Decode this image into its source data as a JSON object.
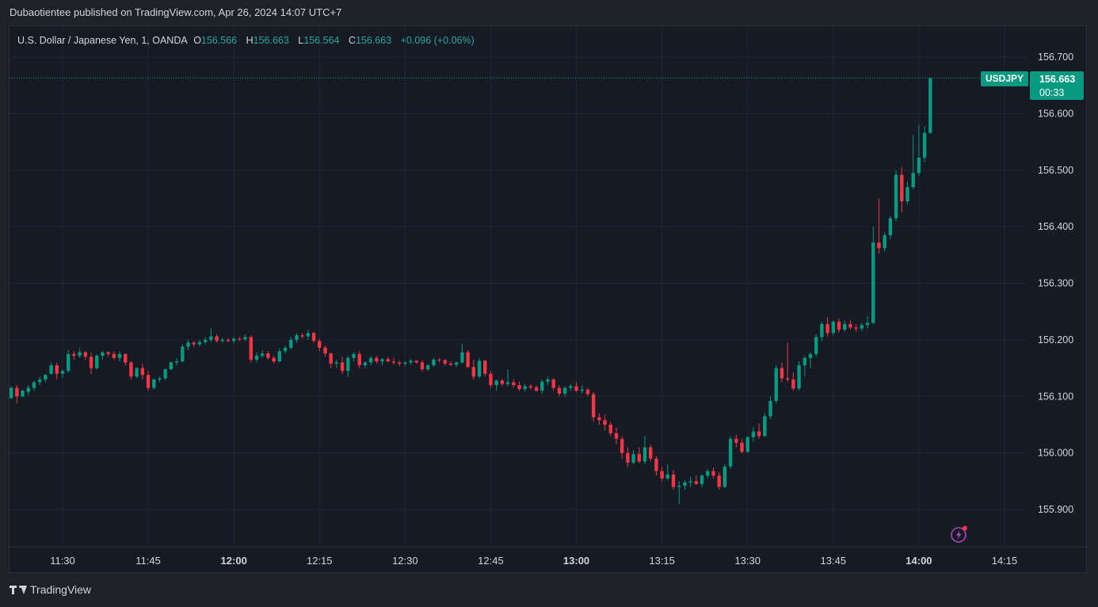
{
  "header": {
    "publisher_text": "Dubaotientee published on TradingView.com, Apr 26, 2024 14:07 UTC+7"
  },
  "legend": {
    "symbol": "U.S. Dollar / Japanese Yen, 1, OANDA",
    "o_label": "O",
    "o_value": "156.566",
    "h_label": "H",
    "h_value": "156.663",
    "l_label": "L",
    "l_value": "156.564",
    "c_label": "C",
    "c_value": "156.663",
    "change": "+0.096 (+0.06%)"
  },
  "price_tag": {
    "symbol": "USDJPY",
    "price": "156.663",
    "countdown": "00:33"
  },
  "footer": {
    "brand": "TradingView"
  },
  "icons": {
    "flash": "flash-icon",
    "logo": "tradingview-logo-icon"
  },
  "colors": {
    "up": "#089981",
    "down": "#f23645",
    "grid": "#232632",
    "text": "#d1d4dc",
    "background": "#161a25"
  },
  "chart_data": {
    "type": "candlestick",
    "timeframe": "1m",
    "y_ticks": [
      "156.700",
      "156.600",
      "156.500",
      "156.400",
      "156.300",
      "156.200",
      "156.100",
      "156.000",
      "155.900"
    ],
    "y_tick_values": [
      156.7,
      156.6,
      156.5,
      156.4,
      156.3,
      156.2,
      156.1,
      156.0,
      155.9
    ],
    "x_ticks": [
      {
        "label": "11:30",
        "bold": false
      },
      {
        "label": "11:45",
        "bold": false
      },
      {
        "label": "12:00",
        "bold": true
      },
      {
        "label": "12:15",
        "bold": false
      },
      {
        "label": "12:30",
        "bold": false
      },
      {
        "label": "12:45",
        "bold": false
      },
      {
        "label": "13:00",
        "bold": true
      },
      {
        "label": "13:15",
        "bold": false
      },
      {
        "label": "13:30",
        "bold": false
      },
      {
        "label": "13:45",
        "bold": false
      },
      {
        "label": "14:00",
        "bold": true
      },
      {
        "label": "14:15",
        "bold": false
      }
    ],
    "x_tick_minutes": [
      690,
      705,
      720,
      735,
      750,
      765,
      780,
      795,
      810,
      825,
      840,
      855
    ],
    "start_minute": 681,
    "ylim": [
      155.84,
      156.74
    ],
    "last_price": 156.663,
    "candles": [
      [
        156.097,
        156.118,
        156.095,
        156.115
      ],
      [
        156.115,
        156.12,
        156.088,
        156.1
      ],
      [
        156.1,
        156.112,
        156.098,
        156.11
      ],
      [
        156.108,
        156.12,
        156.102,
        156.115
      ],
      [
        156.115,
        156.128,
        156.11,
        156.125
      ],
      [
        156.125,
        156.135,
        156.12,
        156.13
      ],
      [
        156.13,
        156.14,
        156.125,
        156.138
      ],
      [
        156.14,
        156.16,
        156.138,
        156.155
      ],
      [
        156.155,
        156.16,
        156.13,
        156.14
      ],
      [
        156.14,
        156.148,
        156.132,
        156.145
      ],
      [
        156.145,
        156.182,
        156.142,
        156.175
      ],
      [
        156.175,
        156.18,
        156.165,
        156.172
      ],
      [
        156.172,
        156.185,
        156.168,
        156.178
      ],
      [
        156.178,
        156.18,
        156.165,
        156.17
      ],
      [
        156.17,
        156.178,
        156.14,
        156.15
      ],
      [
        156.15,
        156.175,
        156.148,
        156.172
      ],
      [
        156.172,
        156.18,
        156.165,
        156.178
      ],
      [
        156.178,
        156.18,
        156.17,
        156.175
      ],
      [
        156.175,
        156.18,
        156.165,
        156.168
      ],
      [
        156.168,
        156.18,
        156.162,
        156.175
      ],
      [
        156.175,
        156.176,
        156.155,
        156.16
      ],
      [
        156.16,
        156.162,
        156.13,
        156.135
      ],
      [
        156.135,
        156.152,
        156.132,
        156.15
      ],
      [
        156.15,
        156.158,
        156.13,
        156.138
      ],
      [
        156.138,
        156.145,
        156.11,
        156.115
      ],
      [
        156.115,
        156.132,
        156.112,
        156.13
      ],
      [
        156.13,
        156.135,
        156.125,
        156.132
      ],
      [
        156.132,
        156.15,
        156.128,
        156.148
      ],
      [
        156.148,
        156.162,
        156.146,
        156.16
      ],
      [
        156.16,
        156.168,
        156.155,
        156.162
      ],
      [
        156.162,
        156.192,
        156.16,
        156.188
      ],
      [
        156.188,
        156.2,
        156.182,
        156.195
      ],
      [
        156.195,
        156.198,
        156.188,
        156.192
      ],
      [
        156.192,
        156.2,
        156.188,
        156.196
      ],
      [
        156.196,
        156.205,
        156.192,
        156.2
      ],
      [
        156.2,
        156.22,
        156.196,
        156.206
      ],
      [
        156.206,
        156.21,
        156.195,
        156.198
      ],
      [
        156.198,
        156.204,
        156.195,
        156.2
      ],
      [
        156.2,
        156.203,
        156.196,
        156.198
      ],
      [
        156.198,
        156.205,
        156.194,
        156.202
      ],
      [
        156.202,
        156.205,
        156.198,
        156.201
      ],
      [
        156.201,
        156.21,
        156.198,
        156.205
      ],
      [
        156.205,
        156.208,
        156.16,
        156.165
      ],
      [
        156.165,
        156.178,
        156.16,
        156.172
      ],
      [
        156.172,
        156.182,
        156.168,
        156.176
      ],
      [
        156.176,
        156.18,
        156.165,
        156.168
      ],
      [
        156.168,
        156.172,
        156.158,
        156.162
      ],
      [
        156.162,
        156.185,
        156.16,
        156.18
      ],
      [
        156.18,
        156.19,
        156.176,
        156.186
      ],
      [
        156.186,
        156.205,
        156.182,
        156.2
      ],
      [
        156.2,
        156.212,
        156.195,
        156.208
      ],
      [
        156.208,
        156.212,
        156.202,
        156.206
      ],
      [
        156.206,
        156.218,
        156.2,
        156.212
      ],
      [
        156.212,
        156.214,
        156.195,
        156.198
      ],
      [
        156.198,
        156.202,
        156.18,
        156.186
      ],
      [
        156.186,
        156.19,
        156.17,
        156.176
      ],
      [
        156.176,
        156.178,
        156.15,
        156.158
      ],
      [
        156.158,
        156.165,
        156.15,
        156.16
      ],
      [
        156.16,
        156.17,
        156.14,
        156.145
      ],
      [
        156.145,
        156.172,
        156.135,
        156.168
      ],
      [
        156.168,
        156.178,
        156.162,
        156.175
      ],
      [
        156.175,
        156.18,
        156.15,
        156.155
      ],
      [
        156.155,
        156.162,
        156.15,
        156.16
      ],
      [
        156.16,
        156.172,
        156.155,
        156.168
      ],
      [
        156.168,
        156.172,
        156.158,
        156.162
      ],
      [
        156.162,
        156.168,
        156.155,
        156.166
      ],
      [
        156.166,
        156.17,
        156.16,
        156.162
      ],
      [
        156.162,
        156.168,
        156.156,
        156.16
      ],
      [
        156.16,
        156.163,
        156.154,
        156.158
      ],
      [
        156.158,
        156.162,
        156.154,
        156.16
      ],
      [
        156.16,
        156.166,
        156.156,
        156.163
      ],
      [
        156.163,
        156.165,
        156.158,
        156.16
      ],
      [
        156.16,
        156.164,
        156.144,
        156.148
      ],
      [
        156.148,
        156.158,
        156.145,
        156.155
      ],
      [
        156.155,
        156.168,
        156.152,
        156.165
      ],
      [
        156.165,
        156.168,
        156.16,
        156.164
      ],
      [
        156.164,
        156.166,
        156.154,
        156.158
      ],
      [
        156.158,
        156.162,
        156.154,
        156.156
      ],
      [
        156.156,
        156.162,
        156.152,
        156.16
      ],
      [
        156.16,
        156.193,
        156.158,
        156.178
      ],
      [
        156.178,
        156.182,
        156.15,
        156.152
      ],
      [
        156.152,
        156.165,
        156.13,
        156.135
      ],
      [
        156.135,
        156.168,
        156.132,
        156.163
      ],
      [
        156.163,
        156.165,
        156.135,
        156.14
      ],
      [
        156.14,
        156.145,
        156.115,
        156.12
      ],
      [
        156.12,
        156.13,
        156.11,
        156.128
      ],
      [
        156.128,
        156.132,
        156.118,
        156.122
      ],
      [
        156.122,
        156.148,
        156.118,
        156.125
      ],
      [
        156.125,
        156.13,
        156.115,
        156.12
      ],
      [
        156.12,
        156.126,
        156.11,
        156.113
      ],
      [
        156.113,
        156.122,
        156.108,
        156.118
      ],
      [
        156.118,
        156.122,
        156.112,
        156.116
      ],
      [
        156.116,
        156.12,
        156.108,
        156.11
      ],
      [
        156.11,
        156.13,
        156.105,
        156.126
      ],
      [
        156.126,
        156.135,
        156.12,
        156.13
      ],
      [
        156.13,
        156.132,
        156.11,
        156.115
      ],
      [
        156.115,
        156.12,
        156.1,
        156.105
      ],
      [
        156.105,
        156.118,
        156.1,
        156.115
      ],
      [
        156.115,
        156.122,
        156.11,
        156.118
      ],
      [
        156.118,
        156.125,
        156.108,
        156.11
      ],
      [
        156.11,
        156.12,
        156.105,
        156.112
      ],
      [
        156.112,
        156.115,
        156.1,
        156.104
      ],
      [
        156.104,
        156.108,
        156.055,
        156.063
      ],
      [
        156.063,
        156.07,
        156.05,
        156.058
      ],
      [
        156.058,
        156.068,
        156.04,
        156.05
      ],
      [
        156.05,
        156.055,
        156.03,
        156.035
      ],
      [
        156.035,
        156.045,
        156.015,
        156.025
      ],
      [
        156.025,
        156.03,
        155.99,
        156.0
      ],
      [
        156.0,
        156.01,
        155.975,
        155.983
      ],
      [
        155.983,
        156.005,
        155.98,
        155.998
      ],
      [
        155.998,
        156.01,
        155.982,
        155.985
      ],
      [
        155.985,
        156.03,
        155.98,
        156.01
      ],
      [
        156.01,
        156.015,
        155.985,
        155.99
      ],
      [
        155.99,
        155.995,
        155.96,
        155.968
      ],
      [
        155.968,
        155.975,
        155.95,
        155.955
      ],
      [
        155.955,
        155.98,
        155.952,
        155.962
      ],
      [
        155.962,
        155.97,
        155.935,
        155.94
      ],
      [
        155.94,
        155.95,
        155.91,
        155.942
      ],
      [
        155.942,
        155.952,
        155.935,
        155.948
      ],
      [
        155.948,
        155.958,
        155.94,
        155.95
      ],
      [
        155.95,
        155.96,
        155.944,
        155.945
      ],
      [
        155.945,
        155.962,
        155.94,
        155.96
      ],
      [
        155.96,
        155.972,
        155.955,
        155.968
      ],
      [
        155.968,
        155.974,
        155.955,
        155.96
      ],
      [
        155.96,
        155.966,
        155.935,
        155.94
      ],
      [
        155.94,
        155.98,
        155.938,
        155.976
      ],
      [
        155.976,
        156.03,
        155.972,
        156.025
      ],
      [
        156.025,
        156.032,
        156.01,
        156.018
      ],
      [
        156.018,
        156.025,
        156.0,
        156.002
      ],
      [
        156.002,
        156.03,
        156.0,
        156.028
      ],
      [
        156.028,
        156.045,
        156.02,
        156.038
      ],
      [
        156.038,
        156.052,
        156.025,
        156.03
      ],
      [
        156.03,
        156.07,
        156.028,
        156.065
      ],
      [
        156.065,
        156.1,
        156.06,
        156.092
      ],
      [
        156.092,
        156.155,
        156.088,
        156.15
      ],
      [
        156.15,
        156.16,
        156.125,
        156.132
      ],
      [
        156.132,
        156.195,
        156.125,
        156.13
      ],
      [
        156.13,
        156.142,
        156.11,
        156.114
      ],
      [
        156.114,
        156.162,
        156.11,
        156.155
      ],
      [
        156.155,
        156.172,
        156.135,
        156.168
      ],
      [
        156.168,
        156.178,
        156.15,
        156.175
      ],
      [
        156.175,
        156.21,
        156.17,
        156.205
      ],
      [
        156.205,
        156.232,
        156.198,
        156.228
      ],
      [
        156.228,
        156.24,
        156.205,
        156.212
      ],
      [
        156.212,
        156.235,
        156.208,
        156.232
      ],
      [
        156.232,
        156.238,
        156.212,
        156.218
      ],
      [
        156.218,
        156.234,
        156.214,
        156.228
      ],
      [
        156.228,
        156.235,
        156.218,
        156.222
      ],
      [
        156.222,
        156.228,
        156.214,
        156.22
      ],
      [
        156.22,
        156.23,
        156.215,
        156.226
      ],
      [
        156.226,
        156.242,
        156.22,
        156.23
      ],
      [
        156.23,
        156.4,
        156.228,
        156.372
      ],
      [
        156.372,
        156.45,
        156.352,
        156.362
      ],
      [
        156.362,
        156.39,
        156.356,
        156.385
      ],
      [
        156.385,
        156.42,
        156.378,
        156.415
      ],
      [
        156.415,
        156.5,
        156.41,
        156.492
      ],
      [
        156.492,
        156.505,
        156.425,
        156.445
      ],
      [
        156.445,
        156.48,
        156.44,
        156.47
      ],
      [
        156.47,
        156.562,
        156.466,
        156.495
      ],
      [
        156.495,
        156.58,
        156.49,
        156.522
      ],
      [
        156.522,
        156.578,
        156.514,
        156.566
      ],
      [
        156.566,
        156.663,
        156.564,
        156.663
      ]
    ]
  }
}
